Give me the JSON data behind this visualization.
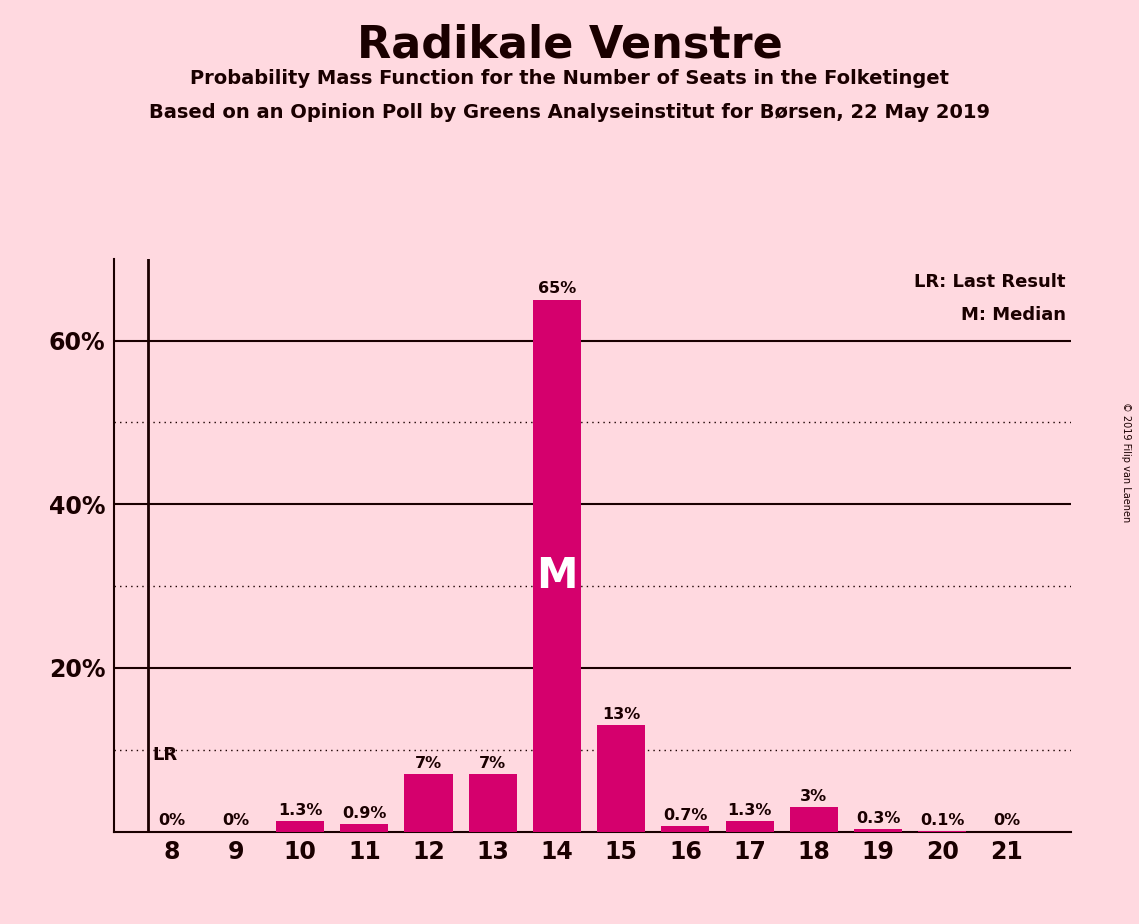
{
  "title": "Radikale Venstre",
  "subtitle1": "Probability Mass Function for the Number of Seats in the Folketinget",
  "subtitle2": "Based on an Opinion Poll by Greens Analyseinstitut for Børsen, 22 May 2019",
  "copyright": "© 2019 Filip van Laenen",
  "seats": [
    8,
    9,
    10,
    11,
    12,
    13,
    14,
    15,
    16,
    17,
    18,
    19,
    20,
    21
  ],
  "probabilities": [
    0.0,
    0.0,
    1.3,
    0.9,
    7.0,
    7.0,
    65.0,
    13.0,
    0.7,
    1.3,
    3.0,
    0.3,
    0.1,
    0.0
  ],
  "bar_labels": [
    "0%",
    "0%",
    "1.3%",
    "0.9%",
    "7%",
    "7%",
    "65%",
    "13%",
    "0.7%",
    "1.3%",
    "3%",
    "0.3%",
    "0.1%",
    "0%"
  ],
  "bar_color": "#D5006D",
  "background_color": "#FFD9E0",
  "text_color": "#1a0000",
  "median_seat": 14,
  "lr_seat": 8,
  "ylim": [
    0,
    70
  ],
  "solid_yticks": [
    20,
    40,
    60
  ],
  "dotted_yticks": [
    10,
    30,
    50
  ],
  "ytick_labels_positions": [
    20,
    40,
    60
  ],
  "ytick_labels_values": [
    "20%",
    "40%",
    "60%"
  ],
  "bar_width": 0.75,
  "xlim_left": 7.1,
  "xlim_right": 22.0
}
